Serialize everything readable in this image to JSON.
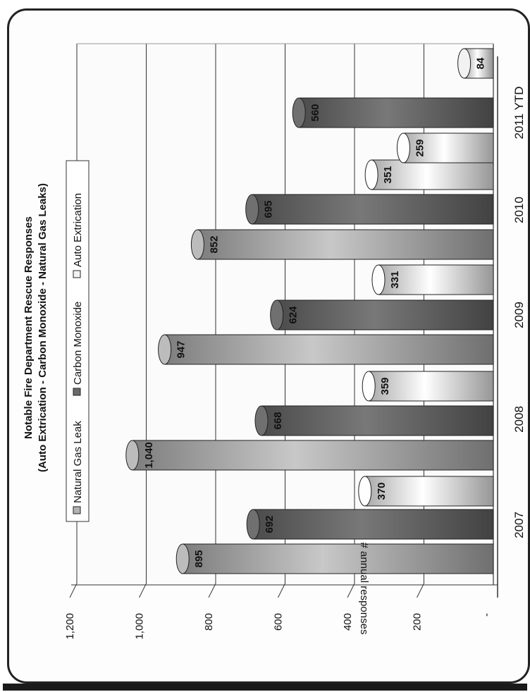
{
  "chart_data": {
    "type": "bar",
    "title": "Notable Fire Department Rescue Responses",
    "subtitle": "(Auto Extrication - Carbon Monoxide - Natural Gas Leaks)",
    "ylabel": "# annual responses",
    "xlabel": "",
    "categories": [
      "2007",
      "2008",
      "2009",
      "2010",
      "2011 YTD"
    ],
    "series": [
      {
        "name": "Natural Gas Leak",
        "values": [
          895,
          1040,
          947,
          852,
          null
        ],
        "labels": [
          "895",
          "1,040",
          "947",
          "852",
          ""
        ],
        "color": "#b3b3b3"
      },
      {
        "name": "Carbon Monoxide",
        "values": [
          692,
          668,
          624,
          695,
          560
        ],
        "labels": [
          "692",
          "668",
          "624",
          "695",
          "560"
        ],
        "color": "#6b6b6b"
      },
      {
        "name": "Auto Extrication",
        "values": [
          370,
          359,
          331,
          351,
          259
        ],
        "labels": [
          "370",
          "359",
          "331",
          "351",
          "259"
        ],
        "color": "#f2f2f2"
      },
      {
        "name": "",
        "values": [
          null,
          null,
          null,
          null,
          84
        ],
        "labels": [
          "",
          "",
          "",
          "",
          "84"
        ],
        "color": "#e6e6e6"
      }
    ],
    "yticks": [
      "",
      "200",
      "400",
      "600",
      "800",
      "1,000",
      "1,200"
    ],
    "ylim": [
      0,
      1200
    ],
    "grid": true,
    "legend_position": "top",
    "orientation": "rotated-90-clockwise"
  }
}
